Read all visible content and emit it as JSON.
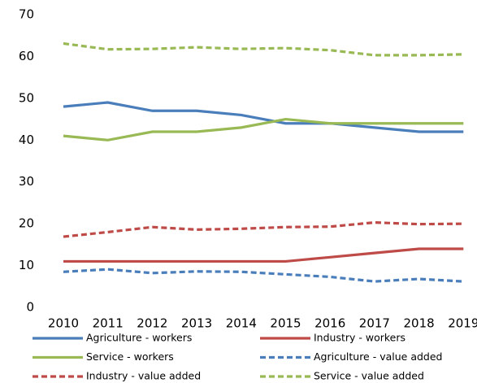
{
  "chart_data": {
    "type": "line",
    "categories": [
      "2010",
      "2011",
      "2012",
      "2013",
      "2014",
      "2015",
      "2016",
      "2017",
      "2018",
      "2019"
    ],
    "ylim": [
      0,
      70
    ],
    "yticks": [
      0,
      10,
      20,
      30,
      40,
      50,
      60,
      70
    ],
    "grid": false,
    "series": [
      {
        "name": "Agriculture - workers",
        "color": "#4a7ebb",
        "style": "solid",
        "values": [
          48,
          49,
          47,
          47,
          46,
          44,
          44,
          43,
          42,
          42
        ]
      },
      {
        "name": "Industry - workers",
        "color": "#be4b48",
        "style": "solid",
        "values": [
          11,
          11,
          11,
          11,
          11,
          11,
          12,
          13,
          14,
          14
        ]
      },
      {
        "name": "Service - workers",
        "color": "#98b954",
        "style": "solid",
        "values": [
          41,
          40,
          42,
          42,
          43,
          45,
          44,
          44,
          44,
          44
        ]
      },
      {
        "name": "Agriculture - value added",
        "color": "#4a7ebb",
        "style": "dashed",
        "values": [
          8.5,
          9.1,
          8.2,
          8.6,
          8.5,
          7.9,
          7.3,
          6.2,
          6.8,
          6.2
        ]
      },
      {
        "name": "Industry - value added",
        "color": "#be4b48",
        "style": "dashed",
        "values": [
          16.9,
          18,
          19.2,
          18.6,
          18.8,
          19.2,
          19.3,
          20.3,
          19.9,
          20
        ]
      },
      {
        "name": "Service - value added",
        "color": "#98b954",
        "style": "dashed",
        "values": [
          63.1,
          61.7,
          61.8,
          62.2,
          61.8,
          62,
          61.5,
          60.3,
          60.3,
          60.5
        ]
      }
    ]
  }
}
